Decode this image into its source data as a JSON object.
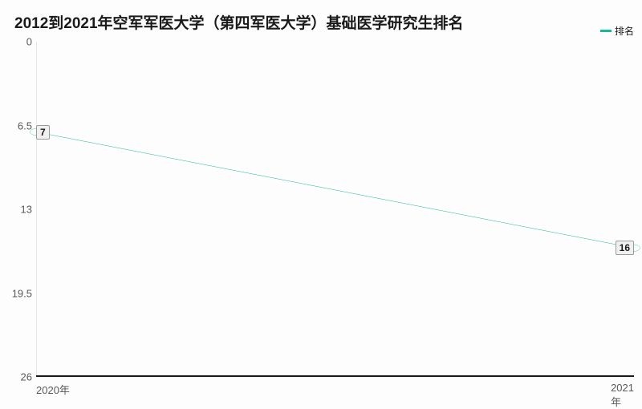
{
  "chart": {
    "type": "line",
    "title": "2012到2021年空军军医大学（第四军医大学）基础医学研究生排名",
    "title_fontsize": 19,
    "title_color": "#1a1a1a",
    "background_color": "#fdfdfd",
    "legend": {
      "label": "排名",
      "color": "#16b99a",
      "fontsize": 12
    },
    "y_axis": {
      "min": 0,
      "max": 26,
      "inverted": true,
      "ticks": [
        0,
        6.5,
        13,
        19.5,
        26
      ],
      "tick_labels": [
        "0",
        "6.5",
        "13",
        "19.5",
        "26"
      ],
      "label_color": "#595959",
      "label_fontsize": 13
    },
    "x_axis": {
      "categories": [
        "2020年",
        "2021年"
      ],
      "label_color": "#595959",
      "label_fontsize": 13,
      "baseline_color": "#1a1a1a"
    },
    "series": {
      "name": "排名",
      "color": "#16b99a",
      "line_width": 1.5,
      "marker_radius": 3,
      "marker_fill": "#ffffff",
      "data": [
        7,
        16
      ],
      "point_labels": [
        "7",
        "16"
      ],
      "point_label_bg": "#f0f0f0",
      "point_label_border": "#9a9a9a",
      "point_label_fontsize": 12
    },
    "grid_color": "#e6e6e6"
  }
}
